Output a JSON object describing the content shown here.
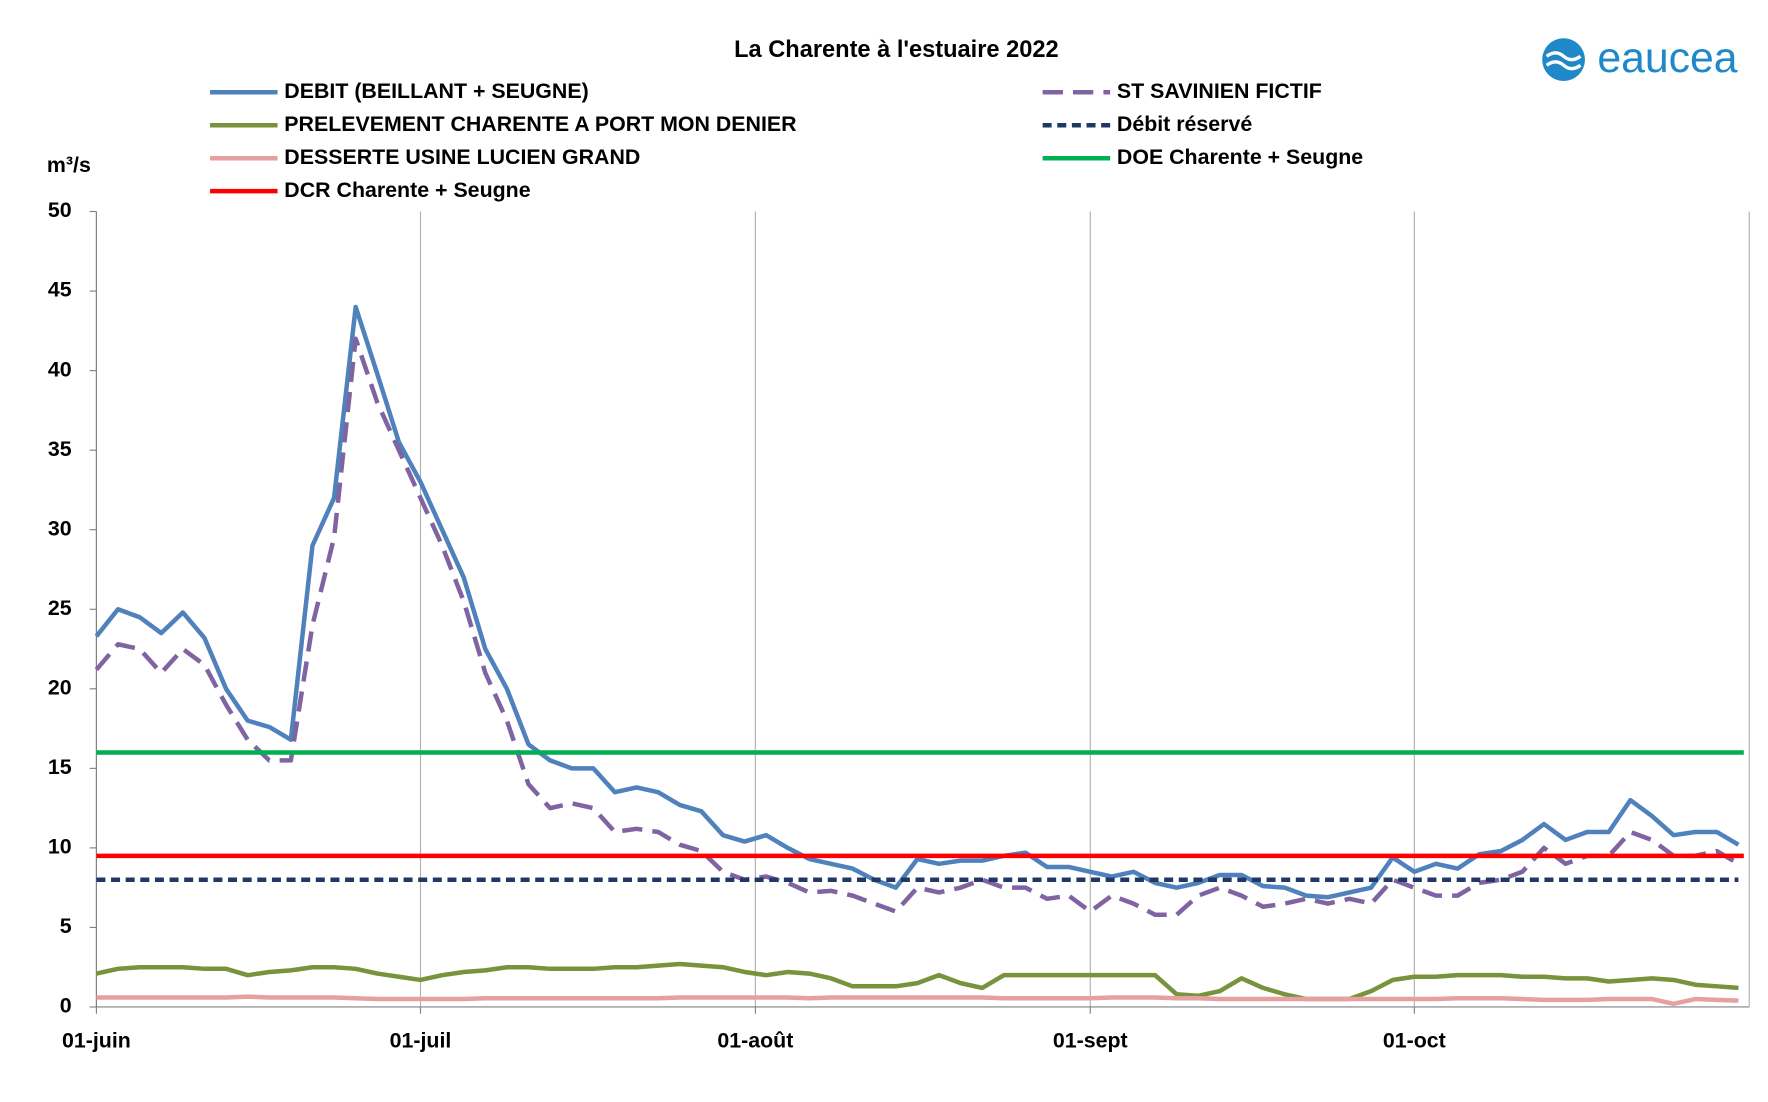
{
  "chart_data": {
    "type": "line",
    "title": "La Charente à l'estuaire 2022",
    "ylabel": "m³/s",
    "logo": "eaucea",
    "x": [
      0,
      2,
      4,
      6,
      8,
      10,
      12,
      14,
      16,
      18,
      20,
      22,
      24,
      26,
      28,
      30,
      32,
      34,
      36,
      38,
      40,
      42,
      44,
      46,
      48,
      50,
      52,
      54,
      56,
      58,
      60,
      62,
      64,
      66,
      68,
      70,
      72,
      74,
      76,
      78,
      80,
      82,
      84,
      86,
      88,
      90,
      92,
      94,
      96,
      98,
      100,
      102,
      104,
      106,
      108,
      110,
      112,
      114,
      116,
      118,
      120,
      122,
      124,
      126,
      128,
      130,
      132,
      134,
      136,
      138,
      140,
      142,
      144,
      146,
      148,
      150,
      152
    ],
    "xlim": [
      0,
      153
    ],
    "xticks": [
      {
        "value": 0,
        "label": "01-juin"
      },
      {
        "value": 30,
        "label": "01-juil"
      },
      {
        "value": 61,
        "label": "01-août"
      },
      {
        "value": 92,
        "label": "01-sept"
      },
      {
        "value": 122,
        "label": "01-oct"
      }
    ],
    "ylim": [
      0,
      50
    ],
    "yticks": [
      0,
      5,
      10,
      15,
      20,
      25,
      30,
      35,
      40,
      45,
      50
    ],
    "grid": "x",
    "series": [
      {
        "name": "DEBIT (BEILLANT + SEUGNE)",
        "color": "#4f81bd",
        "line_style": "solid",
        "values": [
          23.3,
          25.0,
          24.5,
          23.5,
          24.8,
          23.2,
          20.0,
          18.0,
          17.6,
          16.8,
          29.0,
          32.0,
          44.0,
          39.8,
          35.5,
          33.0,
          30.0,
          27.0,
          22.5,
          20.0,
          16.5,
          15.5,
          15.0,
          15.0,
          13.5,
          13.8,
          13.5,
          12.7,
          12.3,
          10.8,
          10.4,
          10.8,
          10.0,
          9.3,
          9.0,
          8.7,
          8.0,
          7.5,
          9.3,
          9.0,
          9.2,
          9.2,
          9.5,
          9.7,
          8.8,
          8.8,
          8.5,
          8.2,
          8.5,
          7.8,
          7.5,
          7.8,
          8.3,
          8.3,
          7.6,
          7.5,
          7.0,
          6.9,
          7.2,
          7.5,
          9.4,
          8.5,
          9.0,
          8.7,
          9.6,
          9.8,
          10.5,
          11.5,
          10.5,
          11.0,
          11.0,
          13.0,
          12.0,
          10.8,
          11.0,
          11.0,
          10.2
        ]
      },
      {
        "name": "ST SAVINIEN FICTIF",
        "color": "#8064a2",
        "line_style": "dashed",
        "values": [
          21.2,
          22.8,
          22.5,
          21.0,
          22.5,
          21.5,
          19.0,
          16.8,
          15.5,
          15.5,
          24.0,
          29.5,
          42.0,
          38.0,
          35.0,
          32.0,
          29.0,
          25.5,
          21.0,
          18.0,
          14.0,
          12.5,
          12.8,
          12.5,
          11.0,
          11.2,
          11.0,
          10.2,
          9.8,
          8.5,
          8.0,
          8.2,
          7.8,
          7.2,
          7.3,
          7.0,
          6.5,
          6.0,
          7.5,
          7.2,
          7.5,
          8.0,
          7.5,
          7.5,
          6.8,
          7.0,
          6.0,
          7.0,
          6.5,
          5.8,
          5.8,
          7.0,
          7.5,
          7.0,
          6.3,
          6.5,
          6.8,
          6.5,
          6.8,
          6.5,
          8.0,
          7.5,
          7.0,
          7.0,
          7.8,
          8.0,
          8.5,
          10.0,
          9.0,
          9.5,
          9.5,
          11.0,
          10.5,
          9.5,
          9.5,
          9.8,
          9.0
        ]
      },
      {
        "name": "PRELEVEMENT CHARENTE A PORT MON DENIER",
        "color": "#77933c",
        "line_style": "solid",
        "values": [
          2.1,
          2.4,
          2.5,
          2.5,
          2.5,
          2.4,
          2.4,
          2.0,
          2.2,
          2.3,
          2.5,
          2.5,
          2.4,
          2.1,
          1.9,
          1.7,
          2.0,
          2.2,
          2.3,
          2.5,
          2.5,
          2.4,
          2.4,
          2.4,
          2.5,
          2.5,
          2.6,
          2.7,
          2.6,
          2.5,
          2.2,
          2.0,
          2.2,
          2.1,
          1.8,
          1.3,
          1.3,
          1.3,
          1.5,
          2.0,
          1.5,
          1.2,
          2.0,
          2.0,
          2.0,
          2.0,
          2.0,
          2.0,
          2.0,
          2.0,
          0.8,
          0.7,
          1.0,
          1.8,
          1.2,
          0.8,
          0.5,
          0.5,
          0.5,
          1.0,
          1.7,
          1.9,
          1.9,
          2.0,
          2.0,
          2.0,
          1.9,
          1.9,
          1.8,
          1.8,
          1.6,
          1.7,
          1.8,
          1.7,
          1.4,
          1.3,
          1.2
        ]
      },
      {
        "name": "Débit réservé",
        "color": "#1f3864",
        "line_style": "short-dashed",
        "x": [
          0,
          152
        ],
        "values": [
          8,
          8
        ]
      },
      {
        "name": "DESSERTE USINE LUCIEN GRAND",
        "color": "#e6a0a0",
        "line_style": "solid",
        "values": [
          0.6,
          0.6,
          0.6,
          0.6,
          0.6,
          0.6,
          0.6,
          0.65,
          0.6,
          0.6,
          0.6,
          0.6,
          0.55,
          0.5,
          0.5,
          0.5,
          0.5,
          0.5,
          0.55,
          0.55,
          0.55,
          0.55,
          0.55,
          0.55,
          0.55,
          0.55,
          0.55,
          0.6,
          0.6,
          0.6,
          0.6,
          0.6,
          0.6,
          0.55,
          0.6,
          0.6,
          0.6,
          0.6,
          0.6,
          0.6,
          0.6,
          0.6,
          0.55,
          0.55,
          0.55,
          0.55,
          0.55,
          0.6,
          0.6,
          0.6,
          0.55,
          0.55,
          0.5,
          0.5,
          0.5,
          0.5,
          0.5,
          0.5,
          0.5,
          0.5,
          0.5,
          0.5,
          0.5,
          0.55,
          0.55,
          0.55,
          0.5,
          0.45,
          0.45,
          0.45,
          0.5,
          0.5,
          0.5,
          0.2,
          0.5,
          0.45,
          0.4
        ]
      },
      {
        "name": "DOE  Charente + Seugne",
        "color": "#00b050",
        "line_style": "solid",
        "x": [
          0,
          152.5
        ],
        "values": [
          16,
          16
        ]
      },
      {
        "name": "DCR  Charente + Seugne",
        "color": "#ff0000",
        "line_style": "solid",
        "x": [
          0,
          152.5
        ],
        "values": [
          9.5,
          9.5
        ]
      }
    ]
  }
}
